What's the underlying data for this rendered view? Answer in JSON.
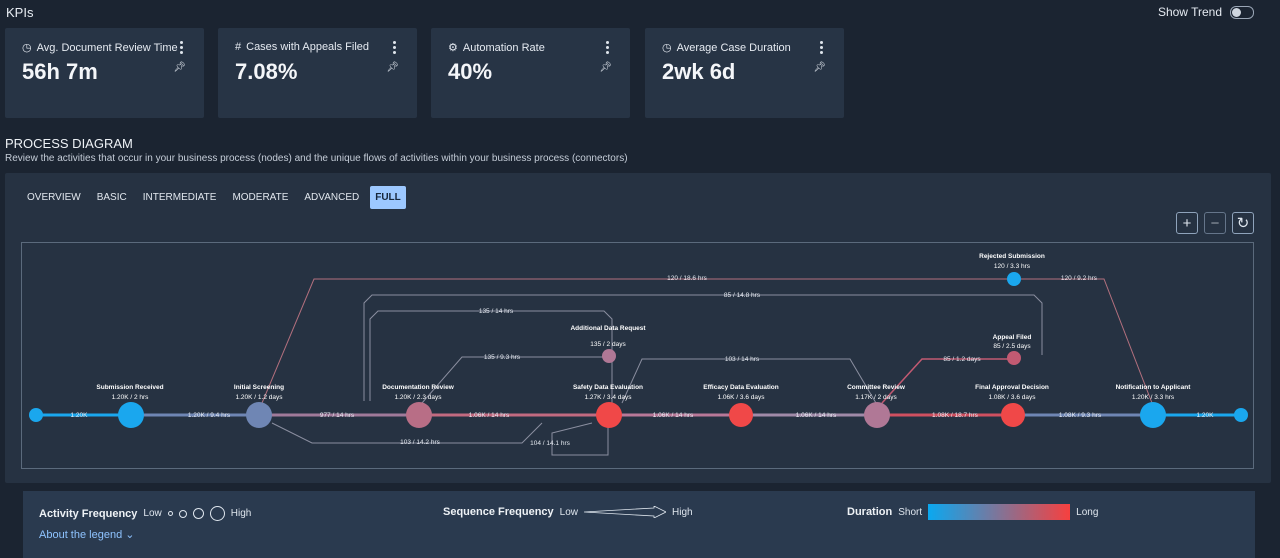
{
  "header": {
    "title": "KPIs",
    "trend_label": "Show Trend"
  },
  "kpis": [
    {
      "label": "Avg. Document Review Time",
      "value": "56h 7m",
      "icon": "clock-icon"
    },
    {
      "label": "Cases with Appeals Filed",
      "value": "7.08%",
      "icon": "hash-icon"
    },
    {
      "label": "Automation Rate",
      "value": "40%",
      "icon": "gears-icon"
    },
    {
      "label": "Average Case Duration",
      "value": "2wk 6d",
      "icon": "clock-icon"
    }
  ],
  "process": {
    "title": "PROCESS DIAGRAM",
    "subtitle": "Review the activities that occur in your business process (nodes) and the unique flows of activities within your business process (connectors)",
    "tabs": [
      "OVERVIEW",
      "BASIC",
      "INTERMEDIATE",
      "MODERATE",
      "ADVANCED",
      "FULL"
    ],
    "active_tab": "FULL",
    "zoom_in": "+",
    "zoom_out": "−",
    "reset": "↻"
  },
  "diagram": {
    "nodes": [
      {
        "id": "submission",
        "title": "Submission Received",
        "stats": "1.20K / 2 hrs",
        "color": "#1aa7ee"
      },
      {
        "id": "screening",
        "title": "Initial Screening",
        "stats": "1.20K / 1.2 days",
        "color": "#6f86b4"
      },
      {
        "id": "docreview",
        "title": "Documentation Review",
        "stats": "1.20K / 2.3 days",
        "color": "#b86e86"
      },
      {
        "id": "adr",
        "title": "Additional Data Request",
        "stats": "135 / 2 days",
        "color": "#b07896"
      },
      {
        "id": "safety",
        "title": "Safety Data Evaluation",
        "stats": "1.27K / 3.4 days",
        "color": "#f04848"
      },
      {
        "id": "efficacy",
        "title": "Efficacy Data Evaluation",
        "stats": "1.06K / 3.6 days",
        "color": "#f04848"
      },
      {
        "id": "committee",
        "title": "Committee Review",
        "stats": "1.17K / 2 days",
        "color": "#b07896"
      },
      {
        "id": "rejected",
        "title": "Rejected Submission",
        "stats": "120 / 3.3 hrs",
        "color": "#1aa7ee"
      },
      {
        "id": "appeal",
        "title": "Appeal Filed",
        "stats": "85 / 2.5 days",
        "color": "#c25a72"
      },
      {
        "id": "final",
        "title": "Final Approval Decision",
        "stats": "1.08K / 3.6 days",
        "color": "#f04848"
      },
      {
        "id": "notify",
        "title": "Notification to Applicant",
        "stats": "1.20K / 3.3 hrs",
        "color": "#1aa7ee"
      }
    ],
    "edges": [
      "1.20K",
      "1.20K / 9.4 hrs",
      "977 / 14 hrs",
      "1.06K / 14 hrs",
      "1.06K / 14 hrs",
      "1.06K / 14 hrs",
      "1.08K / 18.7 hrs",
      "1.08K / 9.3 hrs",
      "1.20K",
      "120 / 18.6 hrs",
      "120 / 9.2 hrs",
      "85 / 14.8 hrs",
      "135 / 14 hrs",
      "135 / 9.3 hrs",
      "103 / 14 hrs",
      "85 / 1.2 days",
      "103 / 14.2 hrs",
      "104 / 14.1 hrs"
    ]
  },
  "legend": {
    "activity": {
      "title": "Activity Frequency",
      "low": "Low",
      "high": "High"
    },
    "sequence": {
      "title": "Sequence Frequency",
      "low": "Low",
      "high": "High"
    },
    "duration": {
      "title": "Duration",
      "short": "Short",
      "long": "Long"
    },
    "about": "About the legend"
  },
  "colors": {
    "short": "#0aa8f0",
    "long": "#f7403f",
    "accent": "#9cc8ff"
  }
}
